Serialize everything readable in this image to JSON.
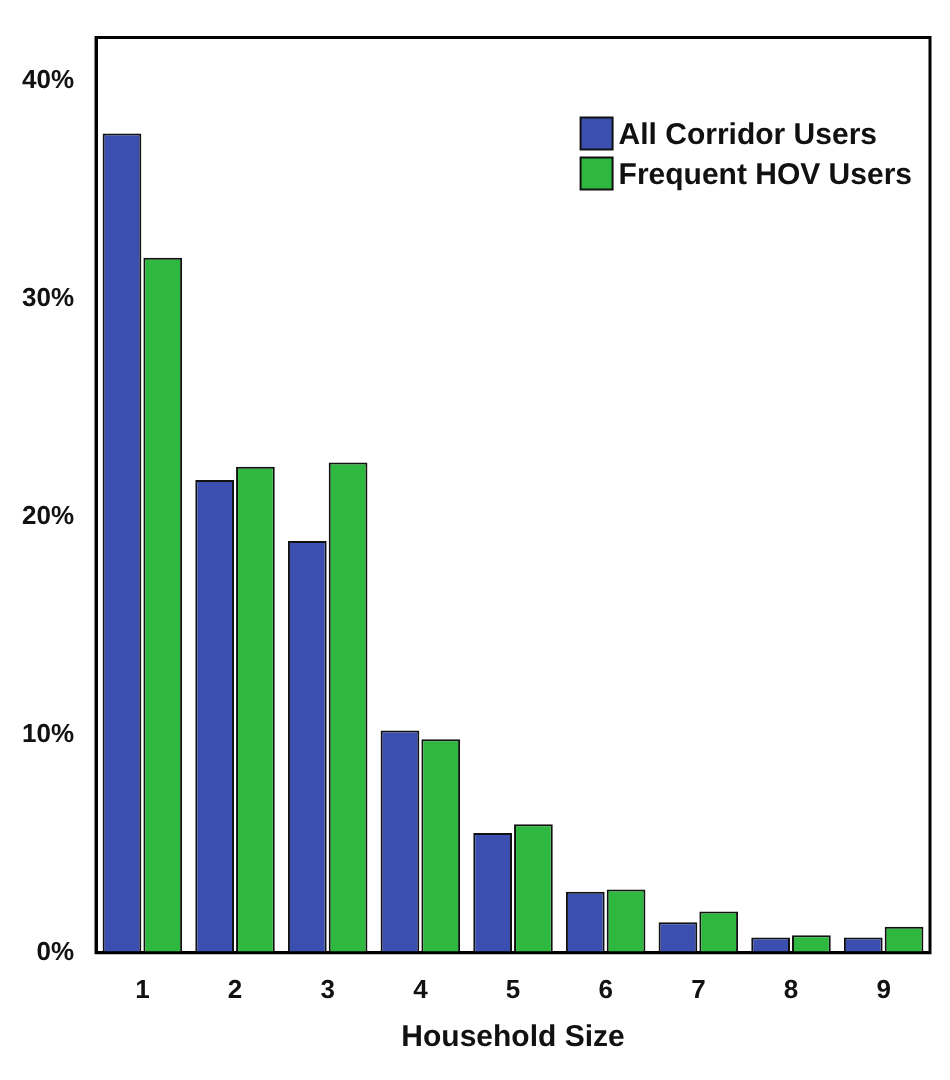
{
  "chart_data": {
    "type": "bar",
    "xlabel": "Household Size",
    "categories": [
      "1",
      "2",
      "3",
      "4",
      "5",
      "6",
      "7",
      "8",
      "9"
    ],
    "series": [
      {
        "name": "All Corridor Users",
        "color": "#3b4fb0",
        "values": [
          37.6,
          21.7,
          18.9,
          10.2,
          5.5,
          2.8,
          1.4,
          0.7,
          0.7
        ]
      },
      {
        "name": "Frequent HOV Users",
        "color": "#2fb83f",
        "values": [
          31.9,
          22.3,
          22.5,
          9.8,
          5.9,
          2.9,
          1.9,
          0.8,
          1.2
        ]
      }
    ],
    "ylim": [
      0,
      42
    ],
    "yticks": [
      {
        "value": 0,
        "label": "0%"
      },
      {
        "value": 10,
        "label": "10%"
      },
      {
        "value": 20,
        "label": "20%"
      },
      {
        "value": 30,
        "label": "30%"
      },
      {
        "value": 40,
        "label": "40%"
      }
    ],
    "grid": false,
    "legend": "top right"
  }
}
